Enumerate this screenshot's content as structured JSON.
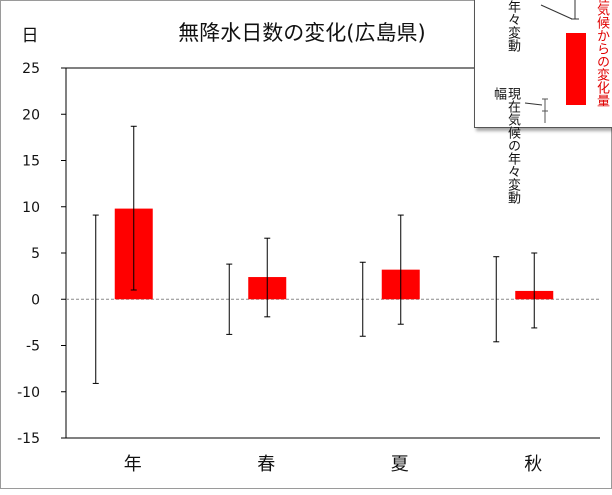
{
  "chart_data": {
    "type": "bar",
    "title": "無降水日数の変化(広島県)",
    "ylabel": "日",
    "ylim": [
      -15,
      25
    ],
    "yticks": [
      25,
      20,
      15,
      10,
      5,
      0,
      -5,
      -10,
      -15
    ],
    "categories": [
      "年",
      "春",
      "夏",
      "秋"
    ],
    "series": [
      {
        "name": "将来気候の現在気候からの変化量",
        "color": "#ff0000",
        "values": [
          9.8,
          2.4,
          3.2,
          0.9
        ]
      }
    ],
    "future_variability": [
      [
        1.0,
        18.7
      ],
      [
        -1.9,
        6.6
      ],
      [
        -2.7,
        9.1
      ],
      [
        -3.1,
        5.0
      ]
    ],
    "present_variability": [
      [
        -9.1,
        9.1
      ],
      [
        -3.8,
        3.8
      ],
      [
        -4.0,
        4.0
      ],
      [
        -4.6,
        4.6
      ]
    ],
    "legend": {
      "future_variability": "将来気候の年々変動幅",
      "change": "現在気候からの変化量",
      "present_variability": "現在気候の年々変動幅"
    },
    "grid": false,
    "zero_line": "dashed"
  },
  "colors": {
    "bar": "#ff0000",
    "axis": "#000000",
    "zero": "#8a8a8a",
    "frame": "#9a9a9a"
  }
}
